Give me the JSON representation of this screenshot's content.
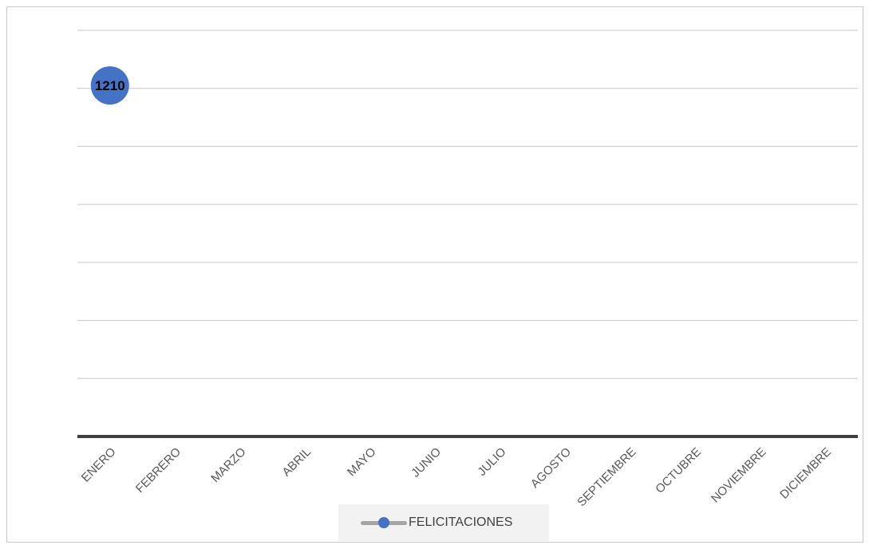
{
  "chart_data": {
    "type": "line",
    "categories": [
      "ENERO",
      "FEBRERO",
      "MARZO",
      "ABRIL",
      "MAYO",
      "JUNIO",
      "JULIO",
      "AGOSTO",
      "SEPTIEMBRE",
      "OCTUBRE",
      "NOVIEMBRE",
      "DICIEMBRE"
    ],
    "series": [
      {
        "name": "FELICITACIONES",
        "values": [
          1210,
          null,
          null,
          null,
          null,
          null,
          null,
          null,
          null,
          null,
          null,
          null
        ],
        "color": "#4472c4",
        "line_color": "#a5a5a5"
      }
    ],
    "data_labels": [
      "1210"
    ],
    "title": "",
    "xlabel": "",
    "ylabel": "",
    "ylim": [
      0,
      1400
    ],
    "grid": true,
    "legend": "bottom"
  }
}
